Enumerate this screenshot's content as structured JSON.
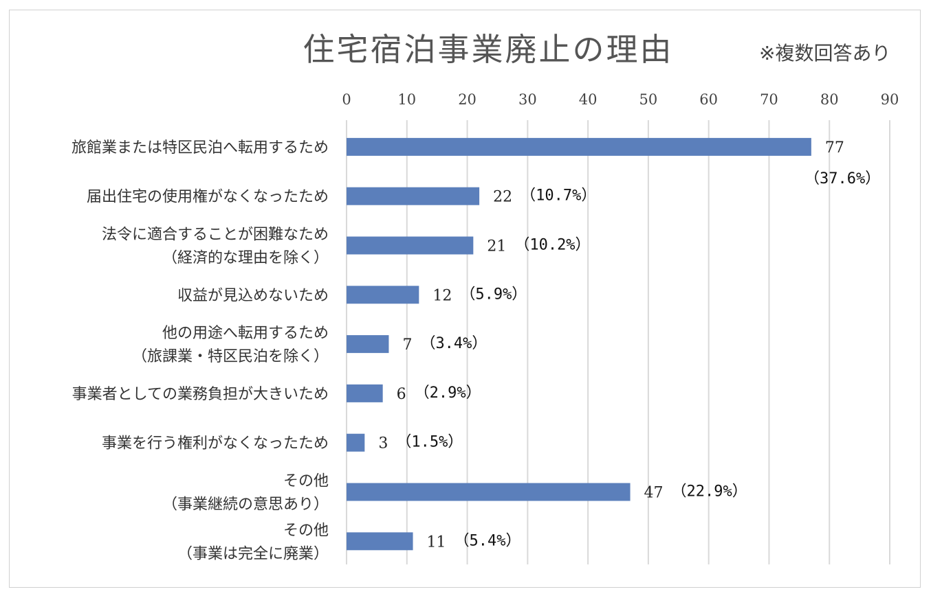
{
  "chart_data": {
    "type": "bar",
    "orientation": "horizontal",
    "title": "住宅宿泊事業廃止の理由",
    "subtitle": "※複数回答あり",
    "xlim": [
      0,
      90
    ],
    "x_ticks": [
      "0",
      "10",
      "20",
      "30",
      "40",
      "50",
      "60",
      "70",
      "80",
      "90"
    ],
    "grid": true,
    "categories": [
      [
        "旅館業または特区民泊へ転用するため"
      ],
      [
        "届出住宅の使用権がなくなったため"
      ],
      [
        "法令に適合することが困難なため",
        "（経済的な理由を除く）"
      ],
      [
        "収益が見込めないため"
      ],
      [
        "他の用途へ転用するため",
        "（旅課業・特区民泊を除く）"
      ],
      [
        "事業者としての業務負担が大きいため"
      ],
      [
        "事業を行う権利がなくなったため"
      ],
      [
        "その他",
        "（事業継続の意思あり）"
      ],
      [
        "その他",
        "（事業は完全に廃業）"
      ]
    ],
    "values": [
      77,
      22,
      21,
      12,
      7,
      6,
      3,
      47,
      11
    ],
    "value_labels": [
      "77",
      "22",
      "21",
      "12",
      "7",
      "6",
      "3",
      "47",
      "11"
    ],
    "percent_labels": [
      "（37.6%）",
      "（10.7%）",
      "（10.2%）",
      "（5.9%）",
      "（3.4%）",
      "（2.9%）",
      "（1.5%）",
      "（22.9%）",
      "（5.4%）"
    ],
    "bar_color": "#5b7fbb",
    "grid_color": "#d9d9d9"
  }
}
